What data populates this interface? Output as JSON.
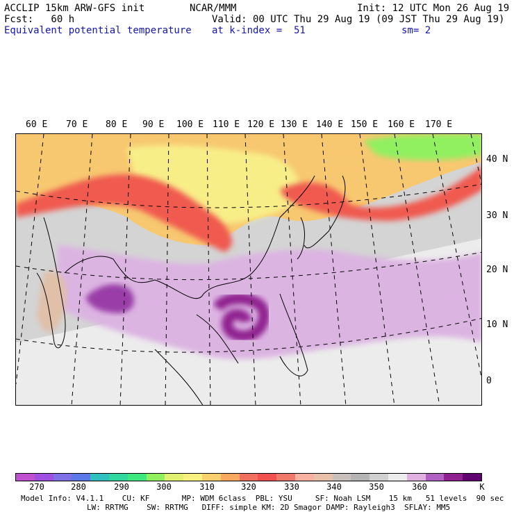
{
  "header": {
    "model": "ACCLIP 15km ARW-GFS init",
    "org": "NCAR/MMM",
    "init": "Init: 12 UTC Mon 26 Aug 19",
    "fcst": "Fcst:   60 h",
    "valid": "Valid: 00 UTC Thu 29 Aug 19 (09 JST Thu 29 Aug 19)",
    "field": "Equivalent potential temperature",
    "level": "at k-index =  51",
    "smooth": "sm= 2"
  },
  "map": {
    "lon_labels": [
      "60 E",
      "70 E",
      "80 E",
      "90 E",
      "100 E",
      "110 E",
      "120 E",
      "130 E",
      "140 E",
      "150 E",
      "160 E",
      "170 E"
    ],
    "lat_labels": [
      "40 N",
      "30 N",
      "20 N",
      "10 N",
      "0"
    ]
  },
  "colorbar": {
    "colors": [
      "#c050d0",
      "#a050e0",
      "#7f70e6",
      "#5a78e8",
      "#30c0c0",
      "#30d8a0",
      "#40e880",
      "#90f060",
      "#e0f070",
      "#f8f080",
      "#f8d070",
      "#f8a860",
      "#f07060",
      "#f05050",
      "#f07a6a",
      "#f8b0a0",
      "#e8c0a8",
      "#c8c0bc",
      "#b4b4b4",
      "#d0d0d0",
      "#ececec",
      "#e0b0e0",
      "#b060c0",
      "#902090",
      "#600070"
    ],
    "ticks": [
      "270",
      "280",
      "290",
      "300",
      "310",
      "320",
      "330",
      "340",
      "350",
      "360"
    ],
    "unit": "K"
  },
  "footer": {
    "line1": "Model Info: V4.1.1    CU: KF       MP: WDM 6class  PBL: YSU     SF: Noah LSM    15 km   51 levels  90 sec",
    "line2": "LW: RRTMG    SW: RRTMG   DIFF: simple KM: 2D Smagor DAMP: Rayleigh3  SFLAY: MM5"
  }
}
